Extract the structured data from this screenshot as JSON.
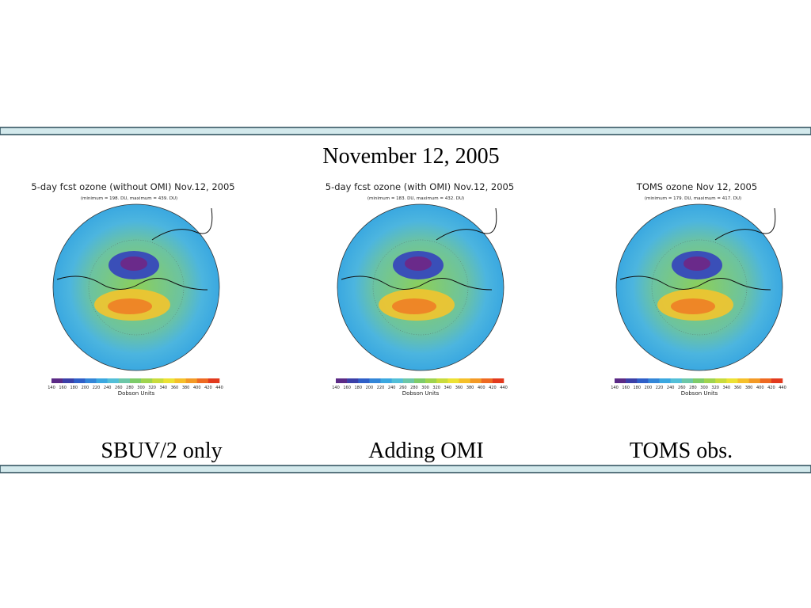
{
  "header": {
    "title": "November 12, 2005"
  },
  "panels": [
    {
      "title": "5-day fcst ozone (without OMI) Nov.12, 2005",
      "subtitle": "(minimum = 198. DU, maximum = 439. DU)",
      "colorbar_labels": [
        140,
        160,
        180,
        200,
        220,
        240,
        260,
        280,
        300,
        320,
        340,
        360,
        380,
        400,
        420,
        440
      ],
      "colorbar_title": "Dobson Units",
      "caption": "SBUV/2 only"
    },
    {
      "title": "5-day fcst ozone (with OMI) Nov.12, 2005",
      "subtitle": "(minimum = 183. DU, maximum = 432. DU)",
      "colorbar_labels": [
        140,
        160,
        180,
        200,
        220,
        240,
        260,
        280,
        300,
        320,
        340,
        360,
        380,
        400,
        420,
        440
      ],
      "colorbar_title": "Dobson Units",
      "caption": "Adding OMI"
    },
    {
      "title": "TOMS ozone  Nov 12, 2005",
      "subtitle": "(minimum = 179. DU, maximum = 417. DU)",
      "colorbar_labels": [
        140,
        160,
        180,
        200,
        220,
        240,
        260,
        280,
        300,
        320,
        340,
        360,
        380,
        400,
        420,
        440
      ],
      "colorbar_title": "Dobson Units",
      "caption": "TOMS obs."
    }
  ]
}
